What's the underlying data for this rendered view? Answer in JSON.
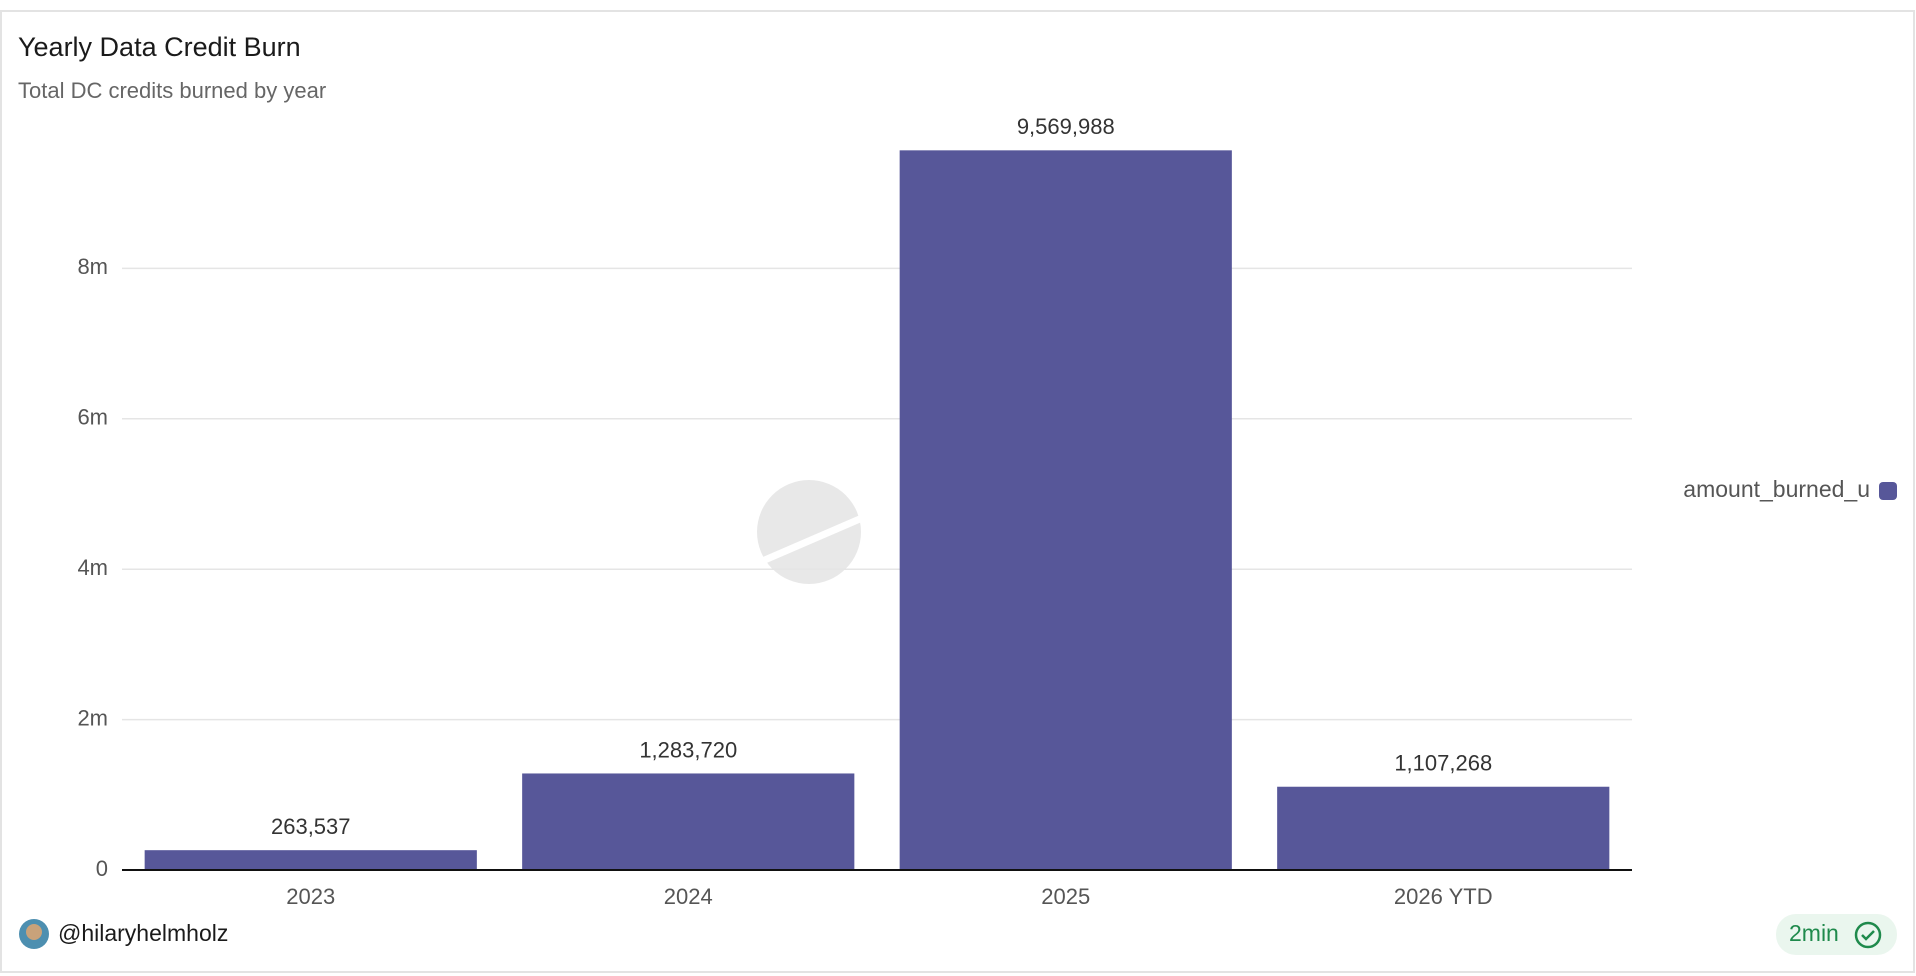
{
  "chart_data": {
    "type": "bar",
    "title": "Yearly Data Credit Burn",
    "subtitle": "Total DC credits burned by year",
    "categories": [
      "2023",
      "2024",
      "2025",
      "2026 YTD"
    ],
    "series": [
      {
        "name": "amount_burned_u",
        "color": "#575799",
        "values": [
          263537,
          1283720,
          9569988,
          1107268
        ],
        "value_labels": [
          "263,537",
          "1,283,720",
          "9,569,988",
          "1,107,268"
        ]
      }
    ],
    "ylim": [
      0,
      10000000
    ],
    "yticks": [
      0,
      {
        "value": 2000000,
        "label": "2m"
      },
      {
        "value": 4000000,
        "label": "4m"
      },
      {
        "value": 6000000,
        "label": "6m"
      },
      {
        "value": 8000000,
        "label": "8m"
      }
    ],
    "grid": true,
    "legend": "right"
  },
  "watermark": "Dune",
  "author": "@hilaryhelmholz",
  "refresh": "2min"
}
